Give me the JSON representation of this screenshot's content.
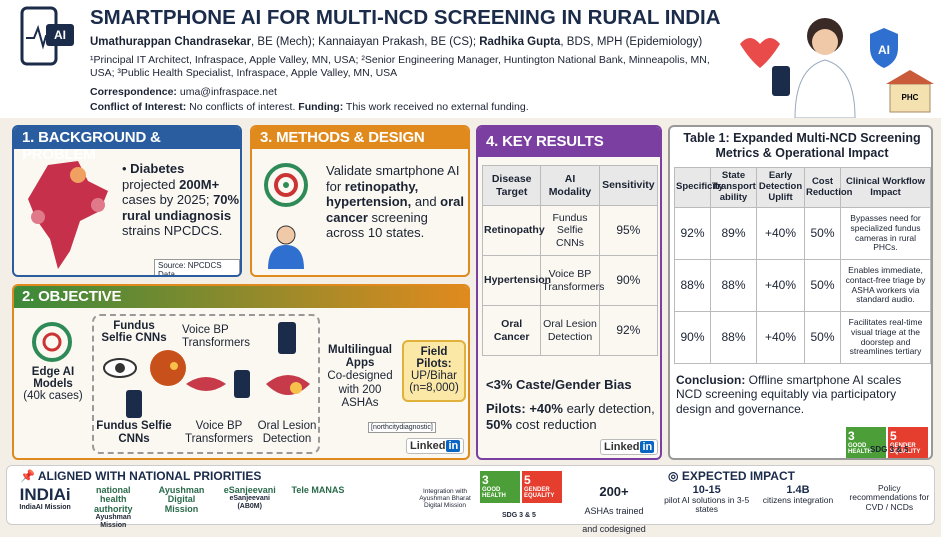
{
  "header": {
    "title": "SMARTPHONE AI FOR MULTI-NCD SCREENING IN RURAL INDIA",
    "icon_label": "AI",
    "authors": [
      "Umathurappan Chandrasekar",
      ", BE (Mech); Kannaiayan Prakash, BE (CS); ",
      "Radhika Gupta",
      ", BDS, MPH (Epidemiology)"
    ],
    "affiliations": "¹Principal IT Architect, Infraspace, Apple Valley, MN, USA; ²Senior Engineering Manager, Huntington National Bank, Minneapolis, MN, USA; ³Public Health Specialist, Infraspace, Apple Valley, MN, USA",
    "correspondence": [
      "Correspondence:",
      " uma@infraspace.net"
    ],
    "conflict": [
      "Conflict of Interest:",
      " No conflicts of interest. ",
      "Funding:",
      " This work received no external funding."
    ],
    "badge": "AI",
    "phc": "PHC"
  },
  "background": {
    "heading": "1. BACKGROUND & PROBLEM",
    "text": [
      "Diabetes",
      " projected ",
      "200M+",
      " cases by 2025; ",
      "70% rural undiagnosis",
      " strains NPCDCS."
    ],
    "source": "Source: NPCDCS Data"
  },
  "methods": {
    "heading": "3. METHODS & DESIGN",
    "text": [
      "Validate smartphone AI for ",
      "retinopathy, hypertension,",
      " and ",
      "oral cancer",
      " screening across 10 states."
    ]
  },
  "objective": {
    "heading": "2. OBJECTIVE",
    "edge": "Edge AI Models",
    "edge_cases": "(40k cases)",
    "fundus_top": "Fundus Selfie CNNs",
    "voice_top": "Voice BP Transformers",
    "fundus_bottom": "Fundus Selfie CNNs",
    "voice_bottom": "Voice BP Transformers",
    "oral": "Oral Lesion Detection",
    "apps": "Multilingual Apps",
    "apps_detail": "Co-designed with 200 ASHAs",
    "pilots": "Field Pilots:",
    "pilots_detail": "UP/Bihar (n=8,000)",
    "tag": "[northcitydiagnostic]",
    "linked": "Linked",
    "in": "in"
  },
  "results": {
    "heading": "4. KEY RESULTS",
    "columns": [
      "Disease Target",
      "AI Modality",
      "Sensitivity"
    ],
    "rows": [
      [
        "Retinopathy",
        "Fundus Selfie CNNs",
        "95%"
      ],
      [
        "Hypertension",
        "Voice BP Transformers",
        "90%"
      ],
      [
        "Oral Cancer",
        "Oral Lesion Detection",
        "92%"
      ]
    ],
    "bias": "<3% Caste/Gender Bias",
    "pilots": [
      "Pilots: +40%",
      " early detection, ",
      "50%",
      " cost reduction"
    ],
    "linked": "Linked",
    "in": "in"
  },
  "table1": {
    "title": "Table 1: Expanded Multi-NCD Screening Metrics & Operational Impact",
    "columns": [
      "Specificity",
      "State Transport ability",
      "Early Detection Uplift",
      "Cost Reduction",
      "Clinical Workflow Impact"
    ],
    "rows": [
      [
        "92%",
        "89%",
        "+40%",
        "50%",
        "Bypasses need for specialized fundus cameras in rural PHCs."
      ],
      [
        "88%",
        "88%",
        "+40%",
        "50%",
        "Enables immediate, contact-free triage by ASHA workers via standard audio."
      ],
      [
        "90%",
        "88%",
        "+40%",
        "50%",
        "Facilitates real-time visual triage at the doorstep and streamlines tertiary"
      ]
    ],
    "conclusion": [
      "Conclusion:",
      " Offline smartphone AI scales NCD screening equitably via participatory design and governance."
    ],
    "sdg_caption": "SDG 3 & 5"
  },
  "sdg": [
    {
      "num": "3",
      "label": "GOOD HEALTH"
    },
    {
      "num": "5",
      "label": "GENDER EQUALITY"
    }
  ],
  "footer": {
    "aligned": "ALIGNED WITH NATIONAL PRIORITIES",
    "logos": [
      {
        "name": "INDIAi",
        "caption": "IndiaAI Mission"
      },
      {
        "name": "national health authority",
        "caption": "Ayushman Mission"
      },
      {
        "name": "Ayushman Digital Mission",
        "caption": ""
      },
      {
        "name": "eSanjeevani",
        "caption": "eSanjeevani (AB0M)"
      },
      {
        "name": "Tele MANAS",
        "caption": ""
      }
    ],
    "integration": "Integration with Ayushman Bharat Digital Mission",
    "sdg_caption": "SDG 3 & 5",
    "ashas": "200+",
    "ashas_detail": "ASHAs trained and codesigned",
    "impact": "EXPECTED IMPACT",
    "impacts": [
      {
        "big": "10-15",
        "small": "pilot AI solutions in 3-5 states"
      },
      {
        "big": "1.4B",
        "small": "citizens integration"
      },
      {
        "big": "",
        "small": "Policy recommendations for CVD / NCDs"
      }
    ]
  }
}
